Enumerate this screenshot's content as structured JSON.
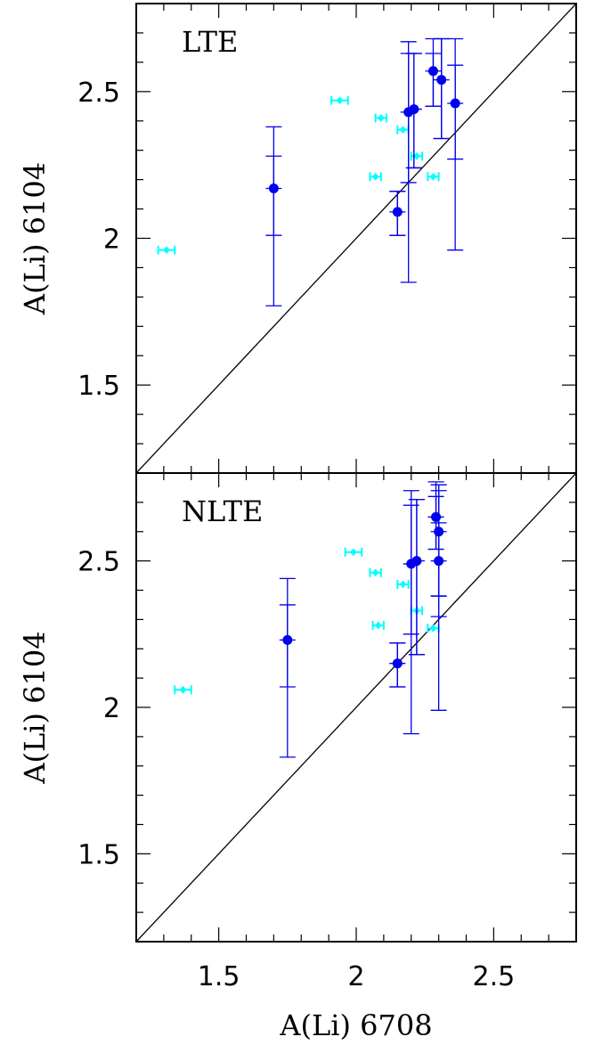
{
  "chart_data": {
    "type": "scatter",
    "xlabel": "A(Li) 6708",
    "ylabel": "A(Li) 6104",
    "xlim": [
      1.2,
      2.8
    ],
    "ylim": [
      1.2,
      2.8
    ],
    "x_ticks_labels": [
      "1.5",
      "2",
      "2.5"
    ],
    "y_ticks_labels": [
      "1.5",
      "2",
      "2.5"
    ],
    "reference_line": "one-to-one (y = x)",
    "colors": {
      "blue": "#0000ee",
      "cyan": "#00ffff",
      "axis": "#000000"
    },
    "panels": [
      {
        "id": "lte",
        "label": "LTE",
        "blue_points": [
          {
            "x": 1.7,
            "y": 2.17,
            "yerr_inner": [
              2.01,
              2.28
            ],
            "yerr_outer": [
              1.77,
              2.38
            ]
          },
          {
            "x": 2.15,
            "y": 2.09,
            "yerr_inner": [
              2.01,
              2.16
            ],
            "yerr_outer": [
              2.01,
              2.16
            ]
          },
          {
            "x": 2.19,
            "y": 2.43,
            "yerr_inner": [
              2.19,
              2.63
            ],
            "yerr_outer": [
              1.85,
              2.67
            ]
          },
          {
            "x": 2.21,
            "y": 2.44,
            "yerr_inner": [
              2.24,
              2.63
            ],
            "yerr_outer": [
              2.24,
              2.63
            ]
          },
          {
            "x": 2.28,
            "y": 2.57,
            "yerr_inner": [
              2.45,
              2.63
            ],
            "yerr_outer": [
              2.45,
              2.68
            ]
          },
          {
            "x": 2.31,
            "y": 2.54,
            "yerr_inner": [
              2.34,
              2.68
            ],
            "yerr_outer": [
              2.34,
              2.68
            ]
          },
          {
            "x": 2.36,
            "y": 2.46,
            "yerr_inner": [
              2.27,
              2.59
            ],
            "yerr_outer": [
              1.96,
              2.68
            ]
          }
        ],
        "cyan_points": [
          {
            "x": 1.31,
            "y": 1.96,
            "xerr": 0.03
          },
          {
            "x": 1.94,
            "y": 2.47,
            "xerr": 0.03
          },
          {
            "x": 2.07,
            "y": 2.21,
            "xerr": 0.02
          },
          {
            "x": 2.09,
            "y": 2.41,
            "xerr": 0.02
          },
          {
            "x": 2.17,
            "y": 2.37,
            "xerr": 0.02
          },
          {
            "x": 2.22,
            "y": 2.28,
            "xerr": 0.02
          },
          {
            "x": 2.28,
            "y": 2.21,
            "xerr": 0.02
          }
        ]
      },
      {
        "id": "nlte",
        "label": "NLTE",
        "blue_points": [
          {
            "x": 1.75,
            "y": 2.23,
            "yerr_inner": [
              2.07,
              2.35
            ],
            "yerr_outer": [
              1.83,
              2.44
            ]
          },
          {
            "x": 2.15,
            "y": 2.15,
            "yerr_inner": [
              2.07,
              2.22
            ],
            "yerr_outer": [
              2.07,
              2.22
            ]
          },
          {
            "x": 2.2,
            "y": 2.49,
            "yerr_inner": [
              2.25,
              2.69
            ],
            "yerr_outer": [
              1.91,
              2.74
            ]
          },
          {
            "x": 2.22,
            "y": 2.5,
            "yerr_inner": [
              2.18,
              2.71
            ],
            "yerr_outer": [
              2.18,
              2.71
            ]
          },
          {
            "x": 2.29,
            "y": 2.65,
            "yerr_inner": [
              2.54,
              2.72
            ],
            "yerr_outer": [
              2.54,
              2.77
            ]
          },
          {
            "x": 2.3,
            "y": 2.6,
            "yerr_inner": [
              2.38,
              2.76
            ],
            "yerr_outer": [
              2.38,
              2.76
            ]
          },
          {
            "x": 2.3,
            "y": 2.5,
            "yerr_inner": [
              2.31,
              2.63
            ],
            "yerr_outer": [
              1.99,
              2.74
            ]
          }
        ],
        "cyan_points": [
          {
            "x": 1.37,
            "y": 2.06,
            "xerr": 0.03
          },
          {
            "x": 1.99,
            "y": 2.53,
            "xerr": 0.03
          },
          {
            "x": 2.07,
            "y": 2.46,
            "xerr": 0.02
          },
          {
            "x": 2.08,
            "y": 2.28,
            "xerr": 0.02
          },
          {
            "x": 2.17,
            "y": 2.42,
            "xerr": 0.02
          },
          {
            "x": 2.22,
            "y": 2.33,
            "xerr": 0.02
          },
          {
            "x": 2.28,
            "y": 2.27,
            "xerr": 0.02
          }
        ]
      }
    ]
  }
}
